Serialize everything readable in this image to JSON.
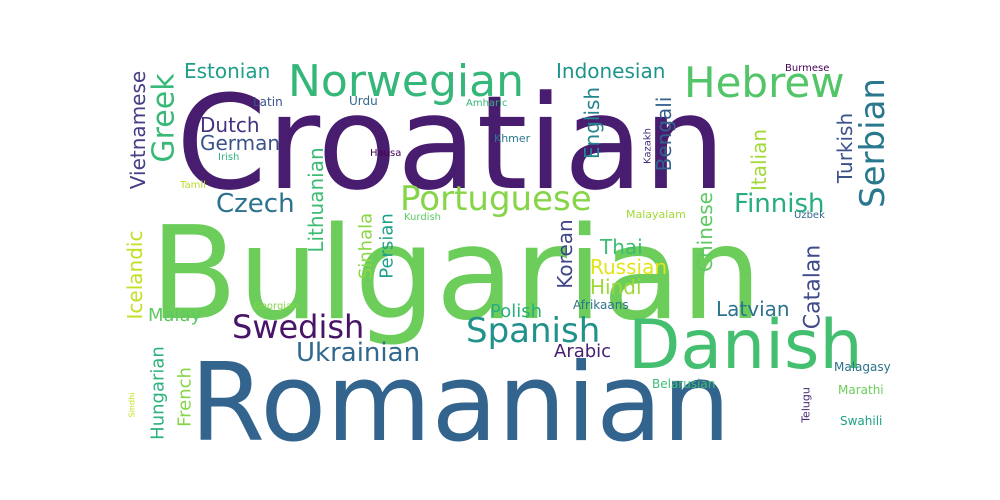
{
  "word_cloud": {
    "words": [
      {
        "text": "Croatian",
        "color": "#481c6e"
      },
      {
        "text": "Bulgarian",
        "color": "#6ccd5a"
      },
      {
        "text": "Romanian",
        "color": "#32648e"
      },
      {
        "text": "Danish",
        "color": "#44bf70"
      },
      {
        "text": "Norwegian",
        "color": "#35b779"
      },
      {
        "text": "Hebrew",
        "color": "#52c569"
      },
      {
        "text": "Portuguese",
        "color": "#86d549"
      },
      {
        "text": "Serbian",
        "color": "#2a788e"
      },
      {
        "text": "Spanish",
        "color": "#21918c"
      },
      {
        "text": "Swedish",
        "color": "#481467"
      },
      {
        "text": "Ukrainian",
        "color": "#31688e"
      },
      {
        "text": "Greek",
        "color": "#38b977"
      },
      {
        "text": "Finnish",
        "color": "#26ad81"
      },
      {
        "text": "Czech",
        "color": "#2c728e"
      },
      {
        "text": "Catalan",
        "color": "#3e4a89"
      },
      {
        "text": "Icelandic",
        "color": "#c2df23"
      },
      {
        "text": "Estonian",
        "color": "#1f9e89"
      },
      {
        "text": "Indonesian",
        "color": "#1f948c"
      },
      {
        "text": "Dutch",
        "color": "#46337e"
      },
      {
        "text": "German",
        "color": "#3b528b"
      },
      {
        "text": "Vietnamese",
        "color": "#433e85"
      },
      {
        "text": "Lithuanian",
        "color": "#3dbc74"
      },
      {
        "text": "English",
        "color": "#25858e"
      },
      {
        "text": "Bengali",
        "color": "#34618d"
      },
      {
        "text": "Italian",
        "color": "#a2da37"
      },
      {
        "text": "Turkish",
        "color": "#3b528b"
      },
      {
        "text": "Korean",
        "color": "#3f4788"
      },
      {
        "text": "Thai",
        "color": "#3dbc74"
      },
      {
        "text": "Russian",
        "color": "#e2e418"
      },
      {
        "text": "Hindi",
        "color": "#9dd93b"
      },
      {
        "text": "Chinese",
        "color": "#5ec962"
      },
      {
        "text": "Latvian",
        "color": "#2c738e"
      },
      {
        "text": "Polish",
        "color": "#29af7f"
      },
      {
        "text": "Arabic",
        "color": "#482071"
      },
      {
        "text": "Malay",
        "color": "#5ec962"
      },
      {
        "text": "Hungarian",
        "color": "#2db27d"
      },
      {
        "text": "French",
        "color": "#86d549"
      },
      {
        "text": "Sinhala",
        "color": "#8bd646"
      },
      {
        "text": "Persian",
        "color": "#1fa088"
      },
      {
        "text": "Urdu",
        "color": "#31688e"
      },
      {
        "text": "Latin",
        "color": "#3b528b"
      },
      {
        "text": "Amharic",
        "color": "#35b779"
      },
      {
        "text": "Khmer",
        "color": "#2a788e"
      },
      {
        "text": "Kazakh",
        "color": "#46327e"
      },
      {
        "text": "Burmese",
        "color": "#440154"
      },
      {
        "text": "Hausa",
        "color": "#440154"
      },
      {
        "text": "Irish",
        "color": "#2db27d"
      },
      {
        "text": "Tamil",
        "color": "#b5de2b"
      },
      {
        "text": "Kurdish",
        "color": "#5ec962"
      },
      {
        "text": "Malayalam",
        "color": "#a2da37"
      },
      {
        "text": "Uzbek",
        "color": "#31688e"
      },
      {
        "text": "Georgian",
        "color": "#86d549"
      },
      {
        "text": "Afrikaans",
        "color": "#2c728e"
      },
      {
        "text": "Belarusian",
        "color": "#3dbc74"
      },
      {
        "text": "Malagasy",
        "color": "#2c728e"
      },
      {
        "text": "Marathi",
        "color": "#6ccd5a"
      },
      {
        "text": "Telugu",
        "color": "#482878"
      },
      {
        "text": "Swahili",
        "color": "#1fa088"
      },
      {
        "text": "Sindhi",
        "color": "#c8e020"
      }
    ]
  }
}
